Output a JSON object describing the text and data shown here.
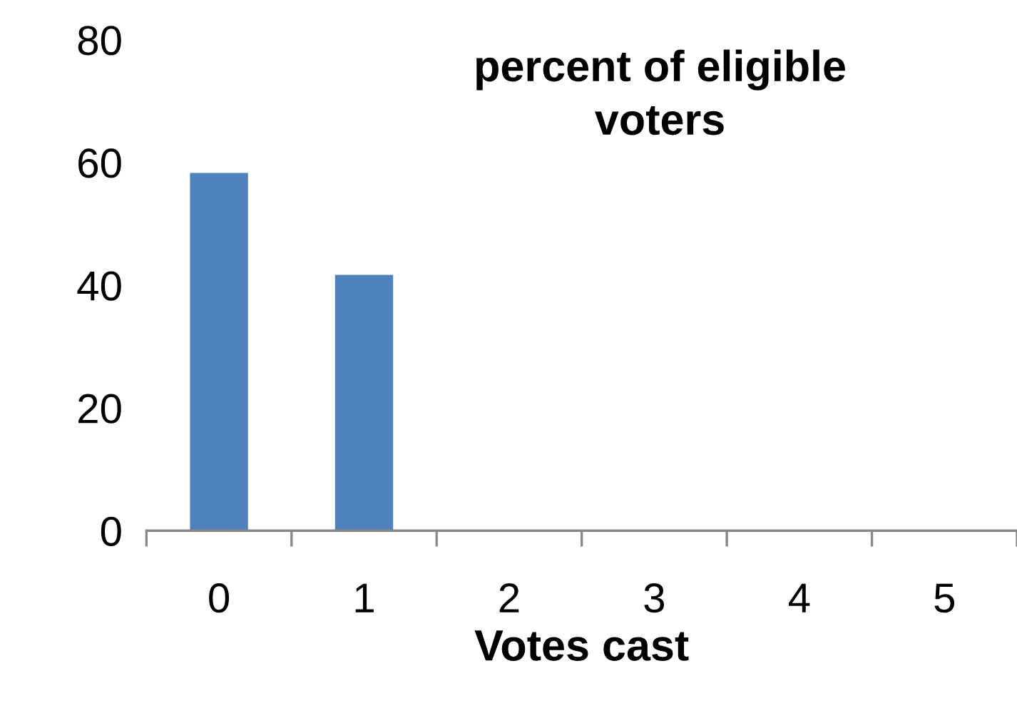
{
  "chart_data": {
    "type": "bar",
    "title": "percent of eligible\nvoters",
    "xlabel": "Votes cast",
    "categories": [
      "0",
      "1",
      "2",
      "3",
      "4",
      "5"
    ],
    "values": [
      58.3,
      41.7,
      0,
      0,
      0,
      0
    ],
    "color": "#4f81bd",
    "ylim": [
      0,
      80
    ],
    "yticks": [
      0,
      20,
      40,
      60,
      80
    ],
    "grid": false,
    "legend": false
  }
}
